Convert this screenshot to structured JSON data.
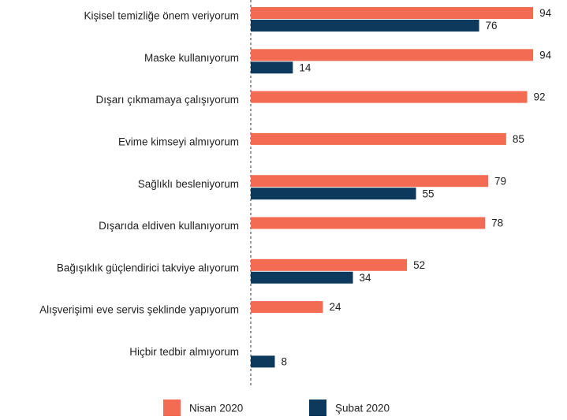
{
  "chart_data": {
    "type": "bar",
    "orientation": "horizontal",
    "categories": [
      "Kişisel temizliğe önem veriyorum",
      "Maske kullanıyorum",
      "Dışarı çıkmamaya çalışıyorum",
      "Evime kimseyi almıyorum",
      "Sağlıklı besleniyorum",
      "Dışarıda eldiven kullanıyorum",
      "Bağışıklık güçlendirici takviye alıyorum",
      "Alışverişimi eve servis şeklinde yapıyorum",
      "Hiçbir tedbir almıyorum"
    ],
    "series": [
      {
        "name": "Nisan 2020",
        "color": "#f26b52",
        "values": [
          94,
          94,
          92,
          85,
          79,
          78,
          52,
          24,
          null
        ]
      },
      {
        "name": "Şubat 2020",
        "color": "#0d3a5c",
        "values": [
          76,
          14,
          null,
          null,
          55,
          null,
          34,
          null,
          8
        ]
      }
    ],
    "xlim": [
      0,
      100
    ],
    "legend": "bottom"
  }
}
